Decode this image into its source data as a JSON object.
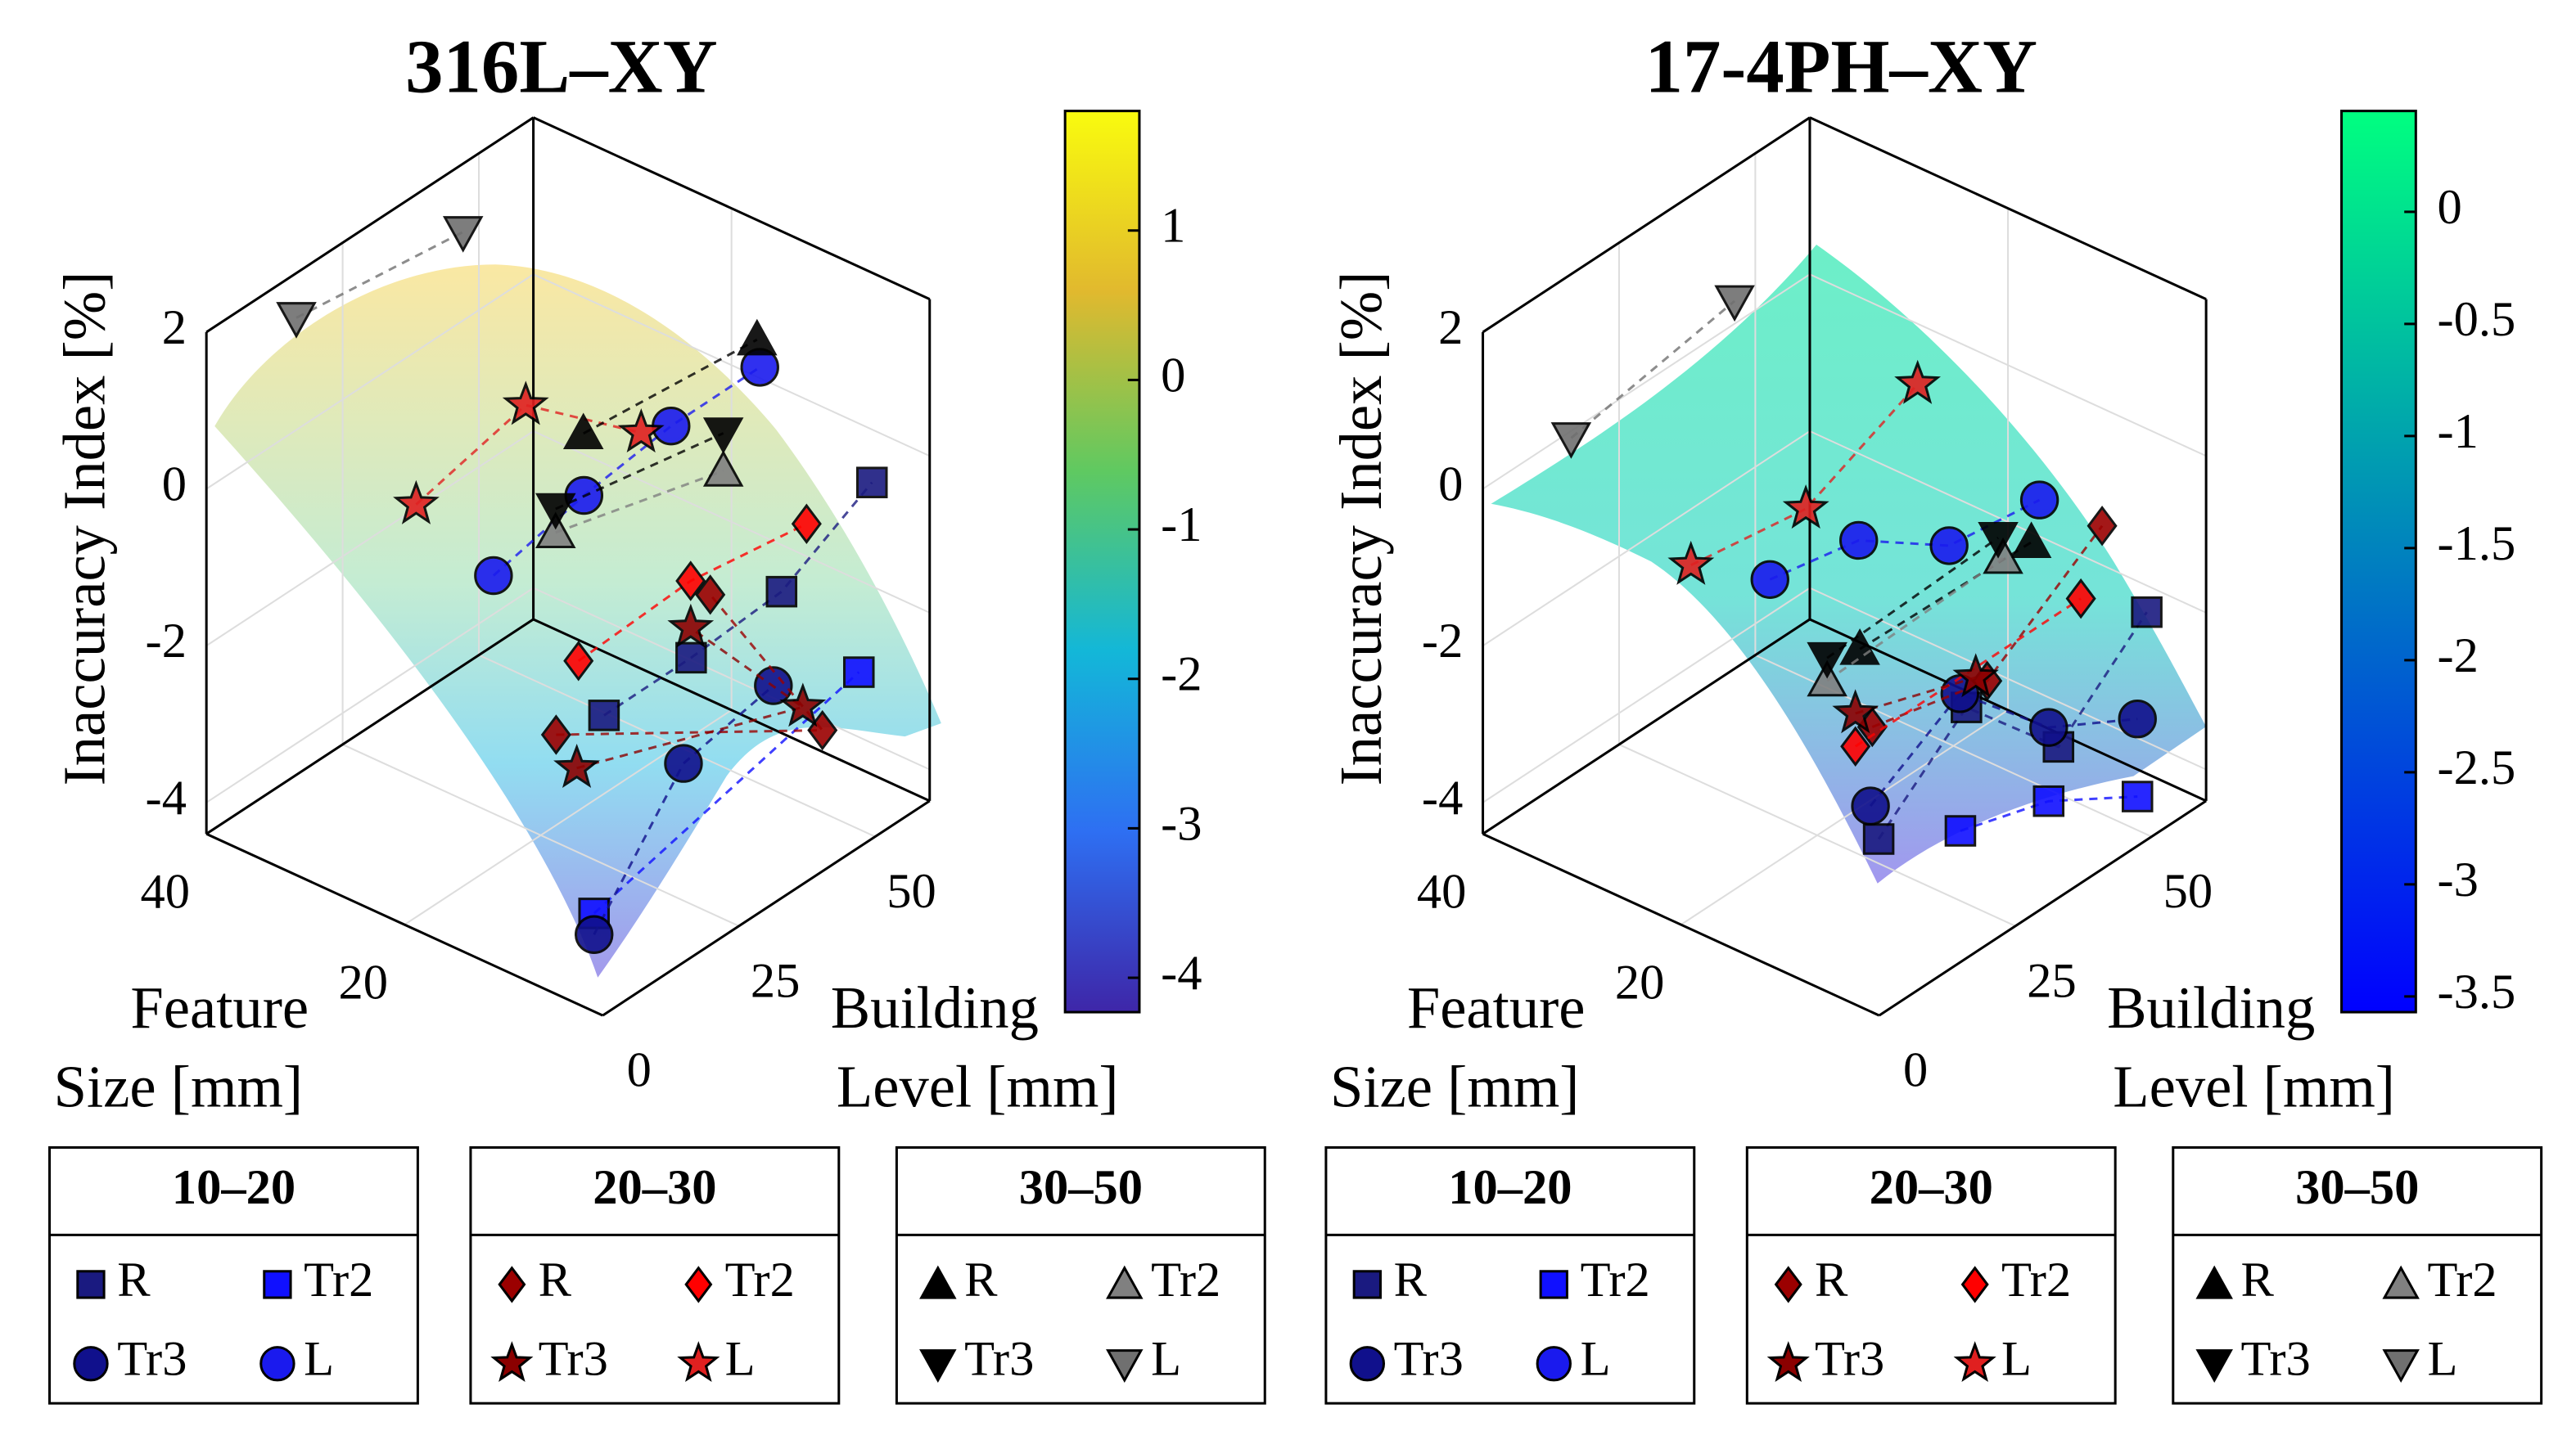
{
  "chart_data": [
    {
      "type": "scatter3d",
      "title": "316L–XY",
      "xlabel": [
        "Feature",
        "Size [mm]"
      ],
      "ylabel": [
        "Building",
        "Level [mm]"
      ],
      "zlabel": "Inaccuracy Index [%]",
      "xlim": [
        0,
        40
      ],
      "xticks": [
        20,
        40
      ],
      "ylim": [
        0,
        60
      ],
      "yticks": [
        0,
        25,
        50
      ],
      "zlim": [
        -4.4,
        2
      ],
      "zticks": [
        -4,
        -2,
        0,
        2
      ],
      "colorbar": {
        "lim": [
          -4.23,
          1.8
        ],
        "ticks": [
          -4,
          -3,
          -2,
          -1,
          0,
          1
        ],
        "colors": [
          "#3e26a8",
          "#2e6ff2",
          "#13b7d8",
          "#5fc961",
          "#e1b92e",
          "#f9fb0e"
        ]
      },
      "groups": [
        {
          "title": "10–20",
          "series": [
            {
              "name": "R",
              "marker": "square",
              "color": "#1a1a80",
              "x": [
                20,
                15,
                10,
                5
              ],
              "y": [
                36.6,
                43.5,
                51,
                58.5
              ],
              "values": [
                -3.4,
                -2.69,
                -1.9,
                -0.56
              ]
            },
            {
              "name": "Tr2",
              "marker": "square",
              "color": "#1010ff",
              "x": [
                5,
                5
              ],
              "y": [
                7.5,
                56.1
              ],
              "values": [
                -3.73,
                -2.87
              ]
            },
            {
              "name": "Tr3",
              "marker": "circle",
              "color": "#10108c",
              "x": [
                5,
                10,
                10
              ],
              "y": [
                7.5,
                33,
                49.5
              ],
              "values": [
                -4.0,
                -3.27,
                -3.03
              ]
            },
            {
              "name": "L",
              "marker": "circle",
              "color": "#1a1aee",
              "x": [
                30,
                25,
                20,
                15
              ],
              "y": [
                34.5,
                42,
                48.9,
                56.1
              ],
              "values": [
                -2.1,
                -1.13,
                -0.27,
                0.44
              ]
            }
          ]
        },
        {
          "title": "20–30",
          "series": [
            {
              "name": "R",
              "marker": "diamond",
              "color": "#9b0000",
              "x": [
                25,
                10,
                20
              ],
              "y": [
                36.9,
                58.5,
                56.1
              ],
              "values": [
                -3.95,
                -4.01,
                -2.75
              ]
            },
            {
              "name": "Tr2",
              "marker": "diamond",
              "color": "#ff0000",
              "x": [
                30,
                20,
                5
              ],
              "y": [
                50.1,
                52.5,
                46.5
              ],
              "values": [
                -3.9,
                -2.41,
                -0.54
              ]
            },
            {
              "name": "Tr3",
              "marker": "star",
              "color": "#8b0000",
              "x": [
                15,
                10,
                20
              ],
              "y": [
                22.5,
                54.9,
                52.5
              ],
              "values": [
                -3.14,
                -3.55,
                -3.01
              ]
            },
            {
              "name": "L",
              "marker": "star",
              "color": "#e02020",
              "x": [
                35,
                35,
                25
              ],
              "y": [
                29.4,
                49.5,
                52.5
              ],
              "values": [
                -1.25,
                -0.9,
                -0.81
              ]
            }
          ]
        },
        {
          "title": "30–50",
          "series": [
            {
              "name": "R",
              "marker": "up",
              "color": "#000000",
              "x": [
                30,
                10
              ],
              "y": [
                51,
                46.5
              ],
              "values": [
                -1.04,
                1.52
              ]
            },
            {
              "name": "Tr2",
              "marker": "up",
              "color": "#808080",
              "x": [
                30,
                20
              ],
              "y": [
                45.9,
                58.5
              ],
              "values": [
                -2.07,
                -1.28
              ]
            },
            {
              "name": "Tr3",
              "marker": "down",
              "color": "#000000",
              "x": [
                30,
                20
              ],
              "y": [
                45.9,
                58.5
              ],
              "values": [
                -1.77,
                -0.8
              ]
            },
            {
              "name": "L",
              "marker": "down",
              "color": "#707070",
              "x": [
                40,
                40
              ],
              "y": [
                16.5,
                47.1
              ],
              "values": [
                1.43,
                1.13
              ]
            }
          ]
        }
      ]
    },
    {
      "type": "scatter3d",
      "title": "17-4PH–XY",
      "xlabel": [
        "Feature",
        "Size [mm]"
      ],
      "ylabel": [
        "Building",
        "Level [mm]"
      ],
      "zlabel": "Inaccuracy Index [%]",
      "xlim": [
        0,
        40
      ],
      "xticks": [
        20,
        40
      ],
      "ylim": [
        0,
        60
      ],
      "yticks": [
        0,
        25,
        50
      ],
      "zlim": [
        -4.4,
        2
      ],
      "zticks": [
        -4,
        -2,
        0,
        2
      ],
      "colorbar": {
        "lim": [
          -3.57,
          0.45
        ],
        "ticks": [
          -3.5,
          -3,
          -2.5,
          -2,
          -1.5,
          -1,
          -0.5,
          0
        ],
        "colors": [
          "#0000ff",
          "#00ff80"
        ]
      },
      "groups": [
        {
          "title": "10–20",
          "series": [
            {
              "name": "R",
              "marker": "square",
              "color": "#1a1a80",
              "x": [
                5,
                10,
                5,
                5
              ],
              "y": [
                9,
                34.2,
                42,
                58.2
              ],
              "values": [
                -2.85,
                -2.61,
                -3.18,
                -2.2
              ]
            },
            {
              "name": "Tr2",
              "marker": "square",
              "color": "#1010ff",
              "x": [
                5,
                5,
                0
              ],
              "y": [
                24,
                40.2,
                47.4
              ],
              "values": [
                -3.43,
                -3.79,
                -3.77
              ]
            },
            {
              "name": "Tr3",
              "marker": "circle",
              "color": "#10108c",
              "x": [
                5,
                10,
                5,
                0
              ],
              "y": [
                7.5,
                33,
                40.2,
                47.4
              ],
              "values": [
                -2.36,
                -2.38,
                -2.85,
                -2.78
              ]
            },
            {
              "name": "L",
              "marker": "circle",
              "color": "#1a1aee",
              "x": [
                30,
                25,
                20,
                15
              ],
              "y": [
                34.5,
                41.7,
                49.2,
                56.7
              ],
              "values": [
                -2.15,
                -1.69,
                -1.81,
                -1.28
              ]
            }
          ]
        },
        {
          "title": "20–30",
          "series": [
            {
              "name": "R",
              "marker": "diamond",
              "color": "#9b0000",
              "x": [
                20,
                15,
                10
              ],
              "y": [
                35.1,
                47.1,
                59.1
              ],
              "values": [
                -3.48,
                -3.15,
                -1.43
              ]
            },
            {
              "name": "Tr2",
              "marker": "diamond",
              "color": "#ff0000",
              "x": [
                25,
                10
              ],
              "y": [
                41.1,
                55.2
              ],
              "values": [
                -4.29,
                -2.18
              ]
            },
            {
              "name": "Tr3",
              "marker": "star",
              "color": "#8b0000",
              "x": [
                25,
                15
              ],
              "y": [
                41.1,
                45
              ],
              "values": [
                -3.87,
                -3.01
              ]
            },
            {
              "name": "L",
              "marker": "star",
              "color": "#e02020",
              "x": [
                35,
                30,
                25
              ],
              "y": [
                29.1,
                41.1,
                52.5
              ],
              "values": [
                -2.01,
                -1.55,
                -0.19
              ]
            }
          ]
        },
        {
          "title": "30–50",
          "series": [
            {
              "name": "R",
              "marker": "up",
              "color": "#000000",
              "x": [
                30,
                15
              ],
              "y": [
                51,
                55.2
              ],
              "values": [
                -3.79,
                -1.75
              ]
            },
            {
              "name": "Tr2",
              "marker": "up",
              "color": "#808080",
              "x": [
                30,
                20
              ],
              "y": [
                45,
                59.1
              ],
              "values": [
                -3.92,
                -2.42
              ]
            },
            {
              "name": "Tr3",
              "marker": "down",
              "color": "#000000",
              "x": [
                30,
                20
              ],
              "y": [
                45,
                58.2
              ],
              "values": [
                -3.63,
                -2.12
              ]
            },
            {
              "name": "L",
              "marker": "down",
              "color": "#707070",
              "x": [
                40,
                40
              ],
              "y": [
                16.2,
                46.2
              ],
              "values": [
                -0.09,
                0.29
              ]
            }
          ]
        }
      ]
    }
  ]
}
